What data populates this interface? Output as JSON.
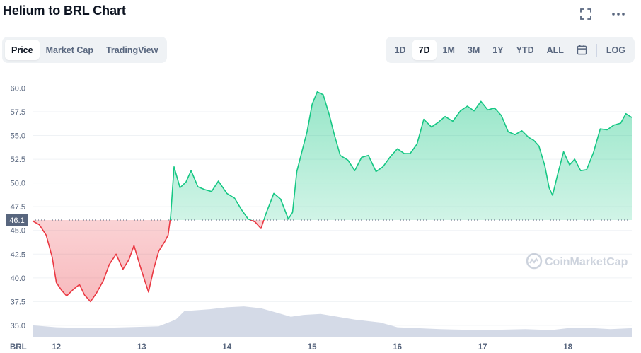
{
  "header": {
    "title": "Helium to BRL Chart"
  },
  "icons": {
    "fullscreen": "fullscreen-icon",
    "more": "more-icon",
    "calendar": "calendar-icon",
    "watermark_logo": "coinmarketcap-logo-icon"
  },
  "chart_tabs": [
    {
      "label": "Price",
      "active": true
    },
    {
      "label": "Market Cap",
      "active": false
    },
    {
      "label": "TradingView",
      "active": false
    }
  ],
  "range_tabs": [
    {
      "label": "1D",
      "active": false
    },
    {
      "label": "7D",
      "active": true
    },
    {
      "label": "1M",
      "active": false
    },
    {
      "label": "3M",
      "active": false
    },
    {
      "label": "1Y",
      "active": false
    },
    {
      "label": "YTD",
      "active": false
    },
    {
      "label": "ALL",
      "active": false
    }
  ],
  "log_label": "LOG",
  "watermark": "CoinMarketCap",
  "colors": {
    "up": "#16c784",
    "down": "#ea3943",
    "volume": "#cfd6e4",
    "grid": "#eff2f5"
  },
  "chart_data": {
    "type": "line",
    "currency_label": "BRL",
    "baseline_value": 46.1,
    "baseline_label": "46.1",
    "y_ticks": [
      "60.0",
      "57.5",
      "55.0",
      "52.5",
      "50.0",
      "47.5",
      "45.0",
      "42.5",
      "40.0",
      "37.5",
      "35.0"
    ],
    "y_tick_values": [
      60.0,
      57.5,
      55.0,
      52.5,
      50.0,
      47.5,
      45.0,
      42.5,
      40.0,
      37.5,
      35.0
    ],
    "ylim": [
      33.8,
      61.6
    ],
    "x_ticks": [
      "12",
      "13",
      "14",
      "15",
      "16",
      "17",
      "18"
    ],
    "x_tick_values": [
      12,
      13,
      14,
      15,
      16,
      17,
      18
    ],
    "xlim": [
      11.72,
      18.75
    ],
    "series": [
      {
        "values": [
          [
            11.72,
            46.0
          ],
          [
            11.8,
            45.6
          ],
          [
            11.88,
            44.5
          ],
          [
            11.95,
            42.2
          ],
          [
            12.0,
            39.5
          ],
          [
            12.06,
            38.7
          ],
          [
            12.12,
            38.1
          ],
          [
            12.2,
            38.8
          ],
          [
            12.27,
            39.3
          ],
          [
            12.33,
            38.2
          ],
          [
            12.4,
            37.5
          ],
          [
            12.47,
            38.4
          ],
          [
            12.55,
            39.7
          ],
          [
            12.62,
            41.4
          ],
          [
            12.7,
            42.5
          ],
          [
            12.78,
            40.9
          ],
          [
            12.85,
            41.9
          ],
          [
            12.91,
            43.4
          ],
          [
            12.98,
            41.3
          ],
          [
            13.03,
            39.9
          ],
          [
            13.08,
            38.5
          ],
          [
            13.14,
            40.9
          ],
          [
            13.2,
            42.8
          ],
          [
            13.27,
            43.8
          ],
          [
            13.31,
            44.5
          ],
          [
            13.34,
            46.5
          ],
          [
            13.38,
            51.7
          ],
          [
            13.45,
            49.5
          ],
          [
            13.52,
            50.1
          ],
          [
            13.58,
            51.3
          ],
          [
            13.66,
            49.6
          ],
          [
            13.74,
            49.3
          ],
          [
            13.82,
            49.1
          ],
          [
            13.9,
            50.2
          ],
          [
            14.0,
            48.9
          ],
          [
            14.09,
            48.4
          ],
          [
            14.17,
            47.2
          ],
          [
            14.25,
            46.2
          ],
          [
            14.33,
            45.9
          ],
          [
            14.4,
            45.2
          ],
          [
            14.46,
            46.8
          ],
          [
            14.55,
            48.9
          ],
          [
            14.63,
            48.3
          ],
          [
            14.72,
            46.2
          ],
          [
            14.77,
            46.9
          ],
          [
            14.82,
            51.2
          ],
          [
            14.88,
            53.3
          ],
          [
            14.94,
            55.4
          ],
          [
            15.0,
            58.3
          ],
          [
            15.06,
            59.6
          ],
          [
            15.13,
            59.3
          ],
          [
            15.2,
            57.2
          ],
          [
            15.26,
            55.1
          ],
          [
            15.33,
            52.9
          ],
          [
            15.42,
            52.4
          ],
          [
            15.5,
            51.3
          ],
          [
            15.58,
            52.7
          ],
          [
            15.66,
            52.9
          ],
          [
            15.75,
            51.2
          ],
          [
            15.83,
            51.7
          ],
          [
            15.92,
            52.8
          ],
          [
            16.0,
            53.6
          ],
          [
            16.08,
            53.1
          ],
          [
            16.15,
            53.1
          ],
          [
            16.23,
            54.1
          ],
          [
            16.31,
            56.7
          ],
          [
            16.4,
            55.9
          ],
          [
            16.48,
            56.4
          ],
          [
            16.56,
            57.0
          ],
          [
            16.65,
            56.5
          ],
          [
            16.74,
            57.6
          ],
          [
            16.82,
            58.1
          ],
          [
            16.9,
            57.6
          ],
          [
            16.98,
            58.6
          ],
          [
            17.06,
            57.7
          ],
          [
            17.14,
            57.9
          ],
          [
            17.22,
            57.1
          ],
          [
            17.3,
            55.4
          ],
          [
            17.38,
            55.1
          ],
          [
            17.46,
            55.5
          ],
          [
            17.54,
            54.8
          ],
          [
            17.6,
            54.5
          ],
          [
            17.66,
            53.9
          ],
          [
            17.73,
            51.8
          ],
          [
            17.78,
            49.5
          ],
          [
            17.82,
            48.7
          ],
          [
            17.88,
            50.9
          ],
          [
            17.95,
            53.3
          ],
          [
            18.02,
            51.9
          ],
          [
            18.08,
            52.5
          ],
          [
            18.15,
            51.3
          ],
          [
            18.22,
            51.4
          ],
          [
            18.3,
            53.2
          ],
          [
            18.38,
            55.7
          ],
          [
            18.46,
            55.6
          ],
          [
            18.54,
            56.1
          ],
          [
            18.62,
            56.3
          ],
          [
            18.68,
            57.3
          ],
          [
            18.75,
            56.9
          ]
        ]
      }
    ],
    "volume_values": [
      [
        11.72,
        35.0
      ],
      [
        12.0,
        34.8
      ],
      [
        12.4,
        34.7
      ],
      [
        12.8,
        34.8
      ],
      [
        13.2,
        34.9
      ],
      [
        13.4,
        35.6
      ],
      [
        13.5,
        36.5
      ],
      [
        13.8,
        36.7
      ],
      [
        14.0,
        36.9
      ],
      [
        14.2,
        37.0
      ],
      [
        14.4,
        36.8
      ],
      [
        14.6,
        36.3
      ],
      [
        14.75,
        35.9
      ],
      [
        14.9,
        36.1
      ],
      [
        15.1,
        36.2
      ],
      [
        15.3,
        35.9
      ],
      [
        15.5,
        35.6
      ],
      [
        15.8,
        35.3
      ],
      [
        16.0,
        34.8
      ],
      [
        16.5,
        34.6
      ],
      [
        17.0,
        34.5
      ],
      [
        17.5,
        34.6
      ],
      [
        17.8,
        34.5
      ],
      [
        18.0,
        34.7
      ],
      [
        18.3,
        34.7
      ],
      [
        18.5,
        34.6
      ],
      [
        18.75,
        34.7
      ]
    ]
  }
}
